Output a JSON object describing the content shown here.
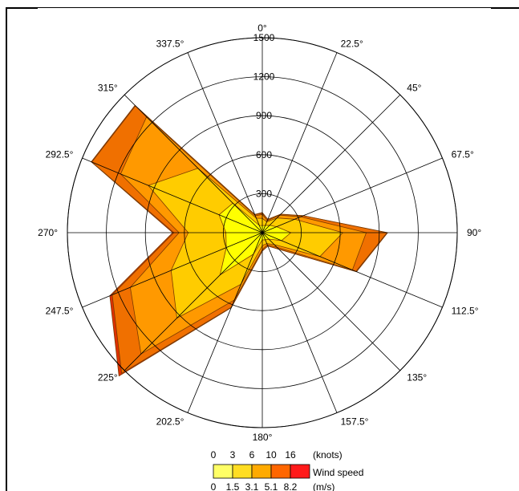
{
  "chart_data": {
    "type": "wind_rose",
    "radial_ticks": [
      "300",
      "600",
      "900",
      "1200",
      "1500"
    ],
    "radial_values": [
      300,
      600,
      900,
      1200,
      1500
    ],
    "radial_max": 1500,
    "directions": [
      "0°",
      "22.5°",
      "45°",
      "67.5°",
      "90°",
      "112.5°",
      "135°",
      "157.5°",
      "180°",
      "202.5°",
      "225°",
      "247.5°",
      "270°",
      "292.5°",
      "315°",
      "337.5°"
    ],
    "direction_degrees": [
      0,
      22.5,
      45,
      67.5,
      90,
      112.5,
      135,
      157.5,
      180,
      202.5,
      225,
      247.5,
      270,
      292.5,
      315,
      337.5
    ],
    "series": [
      {
        "name": "0-3 knots / 0-1.5 m/s",
        "color": "#ffff00",
        "values": [
          55,
          60,
          80,
          120,
          220,
          160,
          70,
          60,
          55,
          180,
          460,
          300,
          280,
          360,
          320,
          60
        ]
      },
      {
        "name": "3-6 knots / 1.5-3.1 m/s",
        "color": "#ffcc00",
        "values": [
          110,
          90,
          160,
          270,
          620,
          480,
          130,
          90,
          100,
          430,
          930,
          760,
          570,
          950,
          700,
          120
        ]
      },
      {
        "name": "6-10 knots / 3.1-5.1 m/s",
        "color": "#ff9900",
        "values": [
          140,
          100,
          190,
          320,
          800,
          750,
          160,
          100,
          130,
          560,
          1320,
          1100,
          640,
          1180,
          1260,
          140
        ]
      },
      {
        "name": "10-16 knots / 5.1-8.2 m/s",
        "color": "#f07000",
        "values": [
          150,
          110,
          200,
          340,
          960,
          780,
          180,
          110,
          140,
          620,
          1530,
          1250,
          680,
          1420,
          1380,
          150
        ]
      },
      {
        "name": ">16 knots / >8.2 m/s",
        "color": "#e03000",
        "values": [
          155,
          112,
          202,
          342,
          965,
          785,
          182,
          112,
          142,
          625,
          1560,
          1270,
          690,
          1425,
          1385,
          152
        ]
      }
    ],
    "legend": {
      "knots_ticks": [
        "0",
        "3",
        "6",
        "10",
        "16"
      ],
      "knots_unit": "(knots)",
      "ms_ticks": [
        "0",
        "1.5",
        "3.1",
        "5.1",
        "8.2"
      ],
      "ms_unit": "(m/s)",
      "title": "Wind speed",
      "colors": [
        "#ffff66",
        "#ffdd22",
        "#ffaa00",
        "#ff6600",
        "#ff1a1a"
      ]
    }
  }
}
